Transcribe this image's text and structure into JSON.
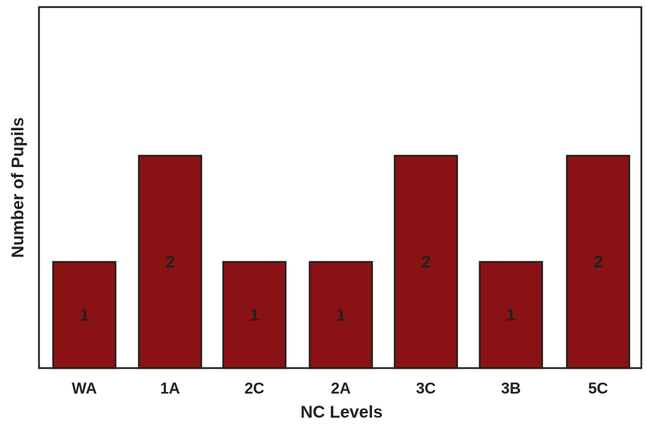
{
  "chart_data": {
    "type": "bar",
    "categories": [
      "WA",
      "1A",
      "2C",
      "2A",
      "3C",
      "3B",
      "5C"
    ],
    "values": [
      1,
      2,
      1,
      1,
      2,
      1,
      2
    ],
    "data_labels": [
      "1",
      "2",
      "1",
      "1",
      "2",
      "1",
      "2"
    ],
    "title": "",
    "xlabel": "NC Levels",
    "ylabel": "Number of Pupils",
    "ylim": [
      0,
      2
    ],
    "bar_color": "#8b1214",
    "grid": false,
    "legend": "none"
  }
}
